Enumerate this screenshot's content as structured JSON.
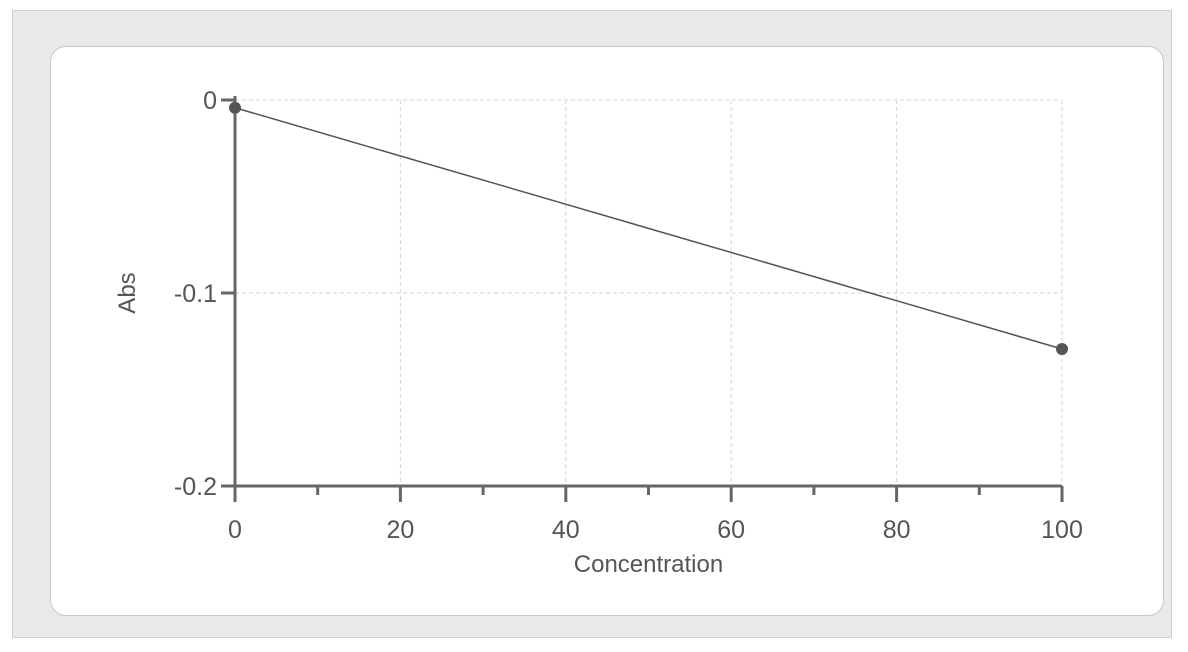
{
  "chart_data": {
    "type": "line",
    "title": "",
    "xlabel": "Concentration",
    "ylabel": "Abs",
    "xlim": [
      0,
      100
    ],
    "ylim": [
      -0.2,
      0
    ],
    "x_ticks": [
      0,
      20,
      40,
      60,
      80,
      100
    ],
    "x_tick_labels": [
      "0",
      "20",
      "40",
      "60",
      "80",
      "100"
    ],
    "x_minor_ticks": [
      10,
      30,
      50,
      70,
      90
    ],
    "y_ticks": [
      0,
      -0.1,
      -0.2
    ],
    "y_tick_labels": [
      "0",
      "-0.1",
      "-0.2"
    ],
    "grid": true,
    "legend": "none",
    "series": [
      {
        "x": [
          0,
          100
        ],
        "y": [
          -0.004,
          -0.129
        ],
        "color": "#555555",
        "marker": "circle"
      }
    ]
  },
  "colors": {
    "frame": "#e9e9e9",
    "panel": "#ffffff",
    "axis": "#666666",
    "grid": "#d6d6d6",
    "series": "#555555"
  }
}
